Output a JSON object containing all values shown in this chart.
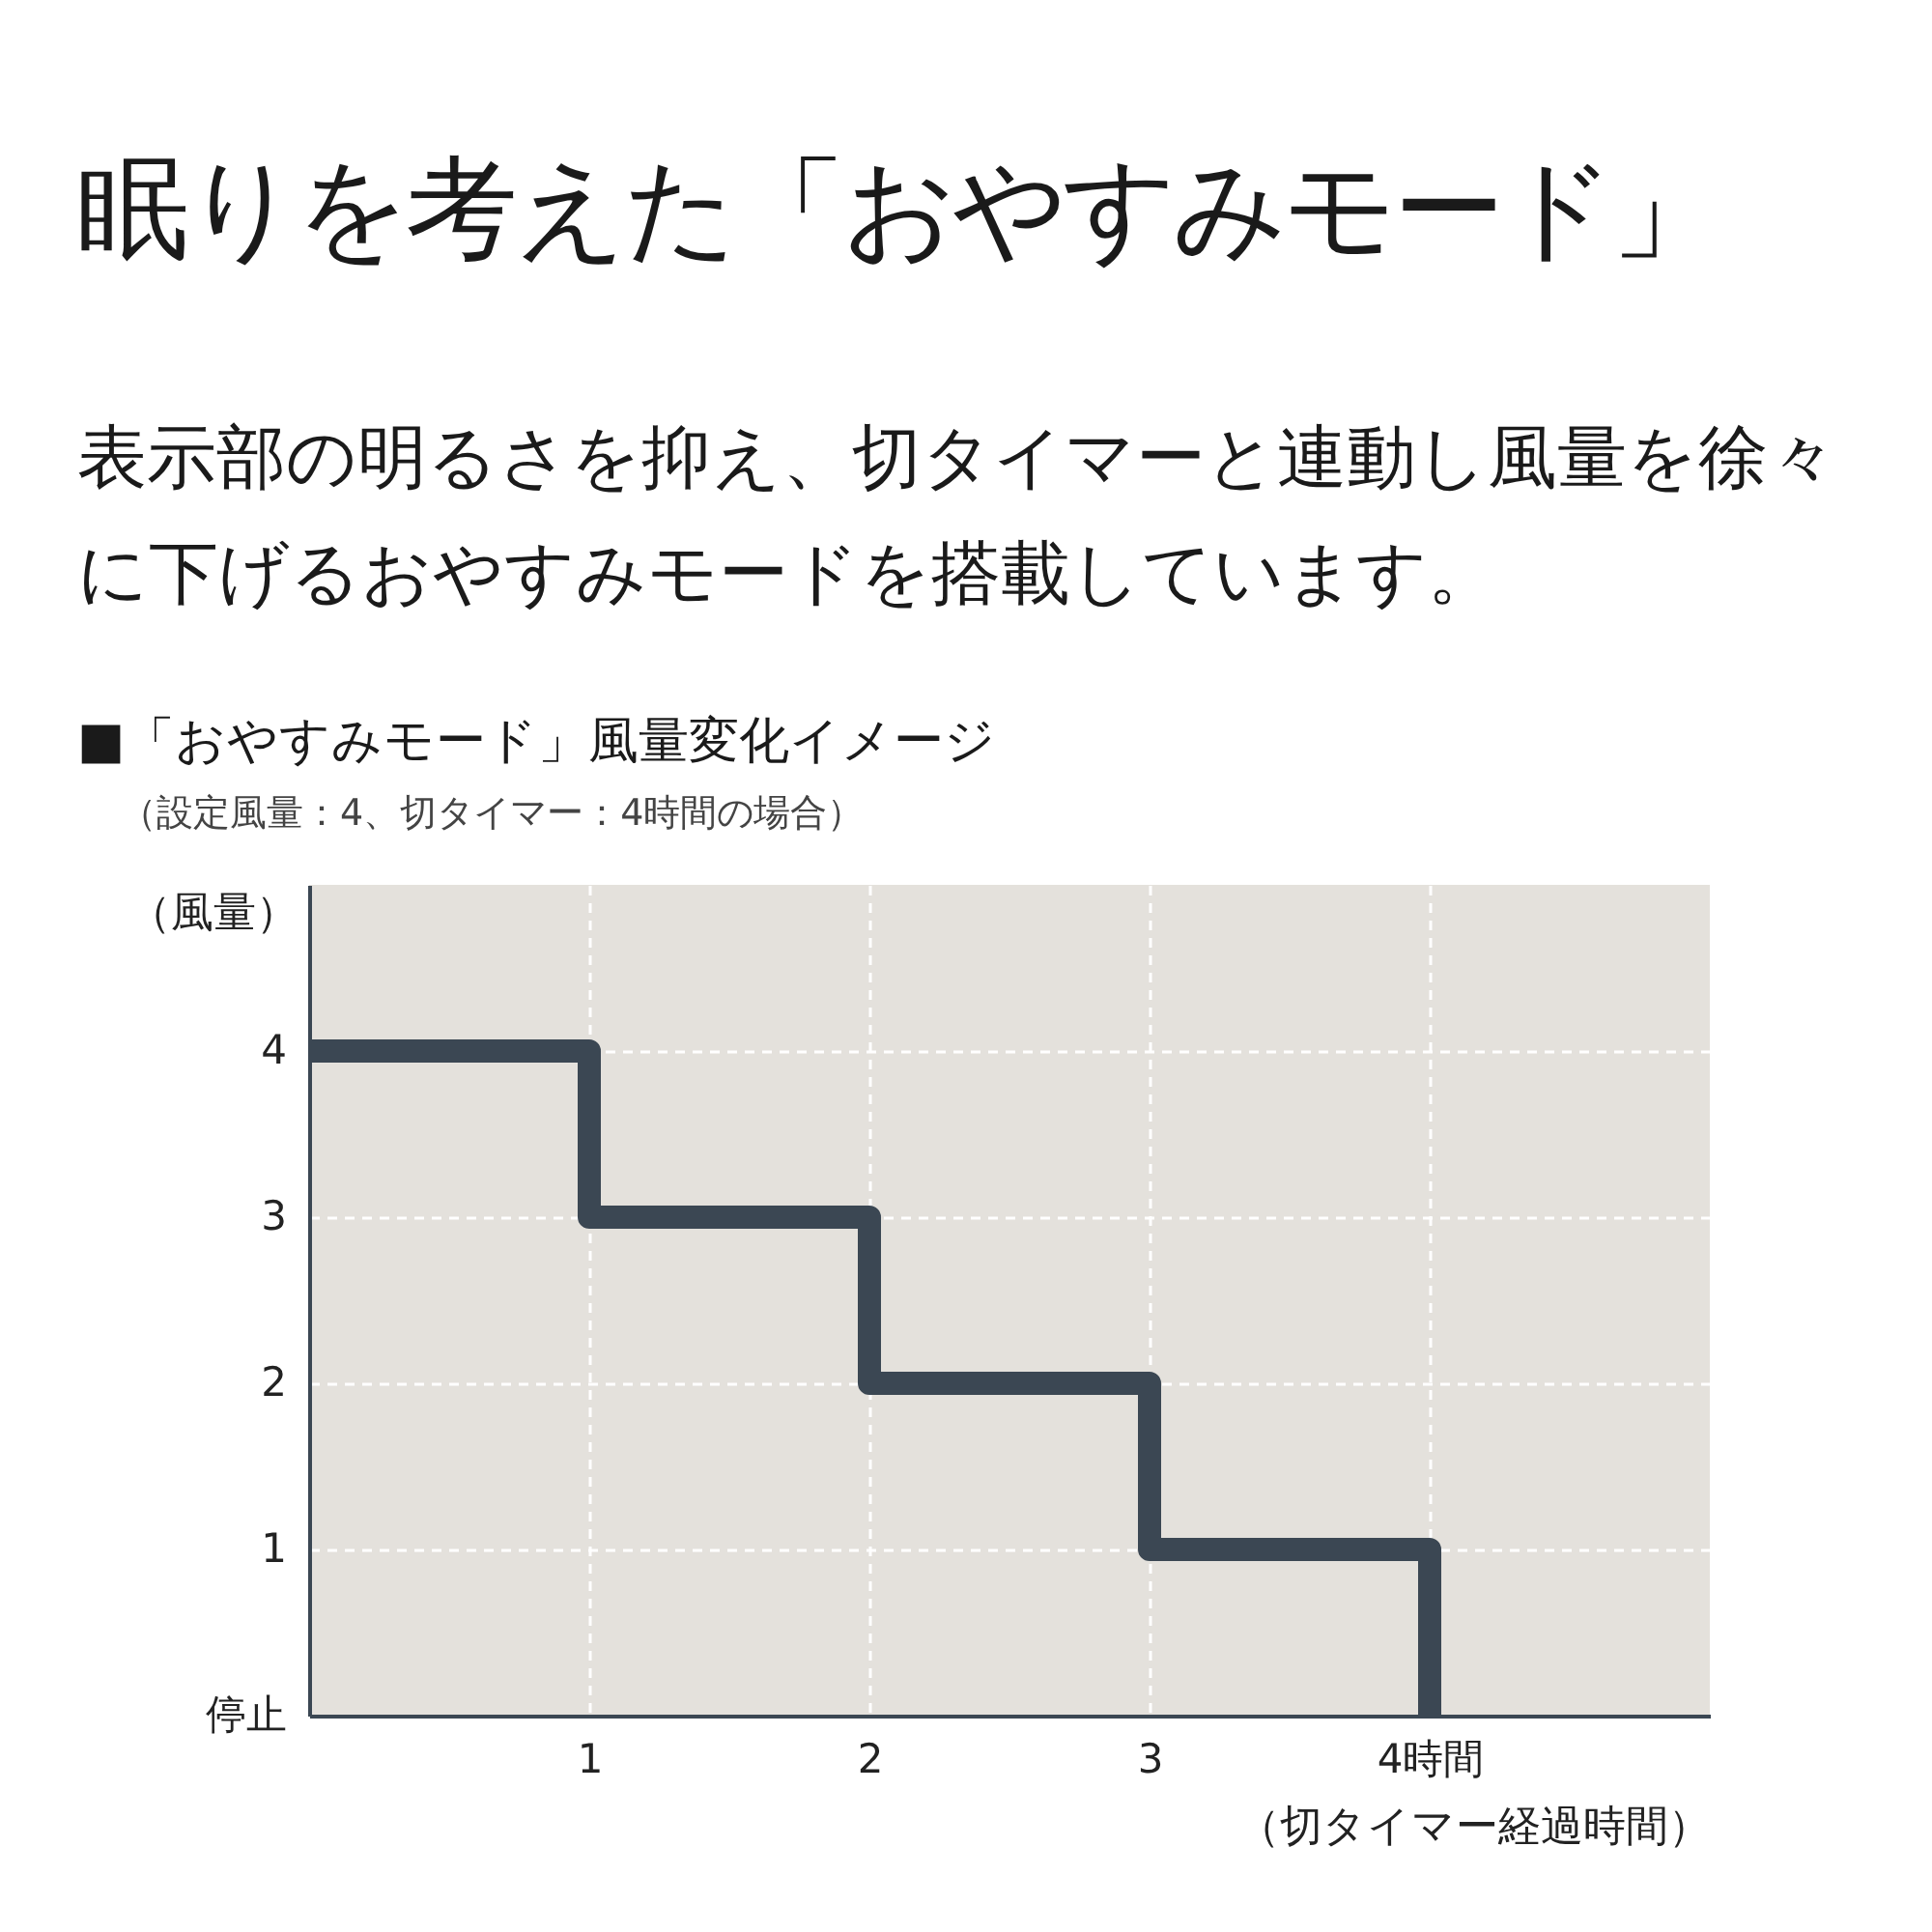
{
  "chart_data": {
    "type": "step",
    "title": "眠りを考えた「おやすみモード」",
    "subtitle": "表示部の明るさを抑え、切タイマーと連動し風量を徐々に下げるおやすみモードを搭載しています。",
    "annotations": [
      "■「おやすみモード」風量変化イメージ",
      "（設定風量：4、切タイマー：4時間の場合）"
    ],
    "xlabel": "（切タイマー経過時間）",
    "ylabel": "（風量）",
    "x": [
      0,
      1,
      2,
      3,
      4
    ],
    "values": [
      4,
      3,
      2,
      1,
      0
    ],
    "color": "#3b4753",
    "xlim": [
      0,
      5
    ],
    "xticks": [
      1,
      2,
      3,
      {
        "value": 4,
        "label": "4時間"
      }
    ],
    "ylim": [
      0,
      5
    ],
    "yticks": [
      {
        "value": 0,
        "label": "停止"
      },
      1,
      2,
      3,
      4
    ],
    "grid": true
  }
}
